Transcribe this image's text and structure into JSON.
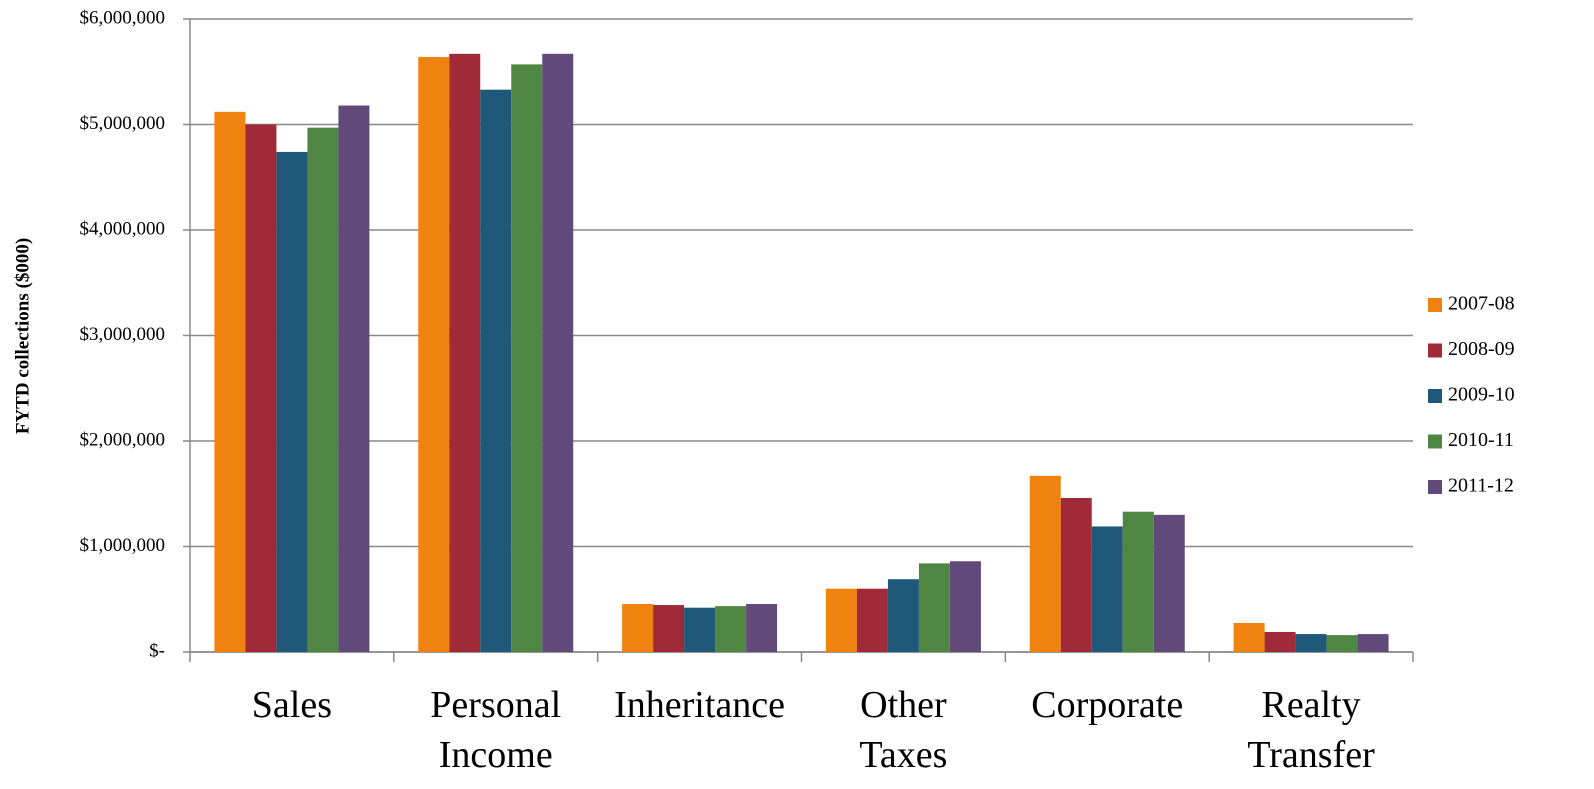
{
  "chart_data": {
    "type": "bar",
    "y_label": "FYTD collections ($000)",
    "categories": [
      "Sales",
      "Personal\nIncome",
      "Inheritance",
      "Other\nTaxes",
      "Corporate",
      "Realty\nTransfer"
    ],
    "series": [
      {
        "name": "2007-08",
        "color": "#f0820f",
        "values": [
          5120000,
          5640000,
          455000,
          600000,
          1670000,
          275000
        ]
      },
      {
        "name": "2008-09",
        "color": "#a02a38",
        "values": [
          5000000,
          5670000,
          445000,
          600000,
          1460000,
          190000
        ]
      },
      {
        "name": "2009-10",
        "color": "#1f5878",
        "values": [
          4740000,
          5330000,
          420000,
          690000,
          1190000,
          170000
        ]
      },
      {
        "name": "2010-11",
        "color": "#4f8742",
        "values": [
          4970000,
          5570000,
          435000,
          840000,
          1330000,
          160000
        ]
      },
      {
        "name": "2011-12",
        "color": "#614a7a",
        "values": [
          5180000,
          5670000,
          455000,
          860000,
          1300000,
          170000
        ]
      }
    ],
    "ylim": [
      0,
      6000000
    ],
    "yticks": [
      {
        "value": 0,
        "label": "$-"
      },
      {
        "value": 1000000,
        "label": "$1,000,000"
      },
      {
        "value": 2000000,
        "label": "$2,000,000"
      },
      {
        "value": 3000000,
        "label": "$3,000,000"
      },
      {
        "value": 4000000,
        "label": "$4,000,000"
      },
      {
        "value": 5000000,
        "label": "$5,000,000"
      },
      {
        "value": 6000000,
        "label": "$6,000,000"
      }
    ],
    "grid": true,
    "legend": "right"
  }
}
